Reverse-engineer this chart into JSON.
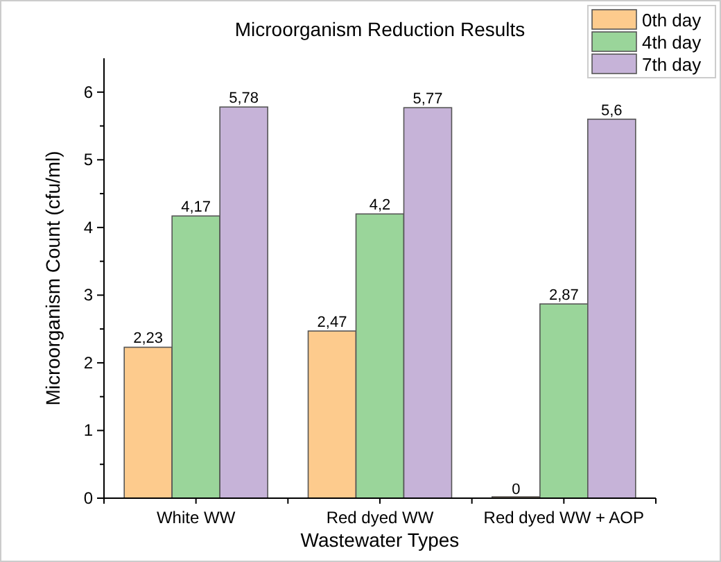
{
  "chart_data": {
    "type": "bar",
    "title": "Microorganism Reduction Results",
    "xlabel": "Wastewater Types",
    "ylabel": "Microorganism Count (cfu/ml)",
    "categories": [
      "White WW",
      "Red dyed WW",
      "Red dyed WW + AOP"
    ],
    "series": [
      {
        "name": "0th day",
        "color": "#fdcb8d",
        "values": [
          2.23,
          2.47,
          0
        ],
        "value_labels": [
          "2,23",
          "2,47",
          "0"
        ]
      },
      {
        "name": "4th day",
        "color": "#9ad59a",
        "values": [
          4.17,
          4.2,
          2.87
        ],
        "value_labels": [
          "4,17",
          "4,2",
          "2,87"
        ]
      },
      {
        "name": "7th day",
        "color": "#c6b3d8",
        "values": [
          5.78,
          5.77,
          5.6
        ],
        "value_labels": [
          "5,78",
          "5,77",
          "5,6"
        ]
      }
    ],
    "ylim": [
      0,
      6.5
    ],
    "yticks": [
      0,
      1,
      2,
      3,
      4,
      5,
      6
    ],
    "legend": "top right"
  }
}
